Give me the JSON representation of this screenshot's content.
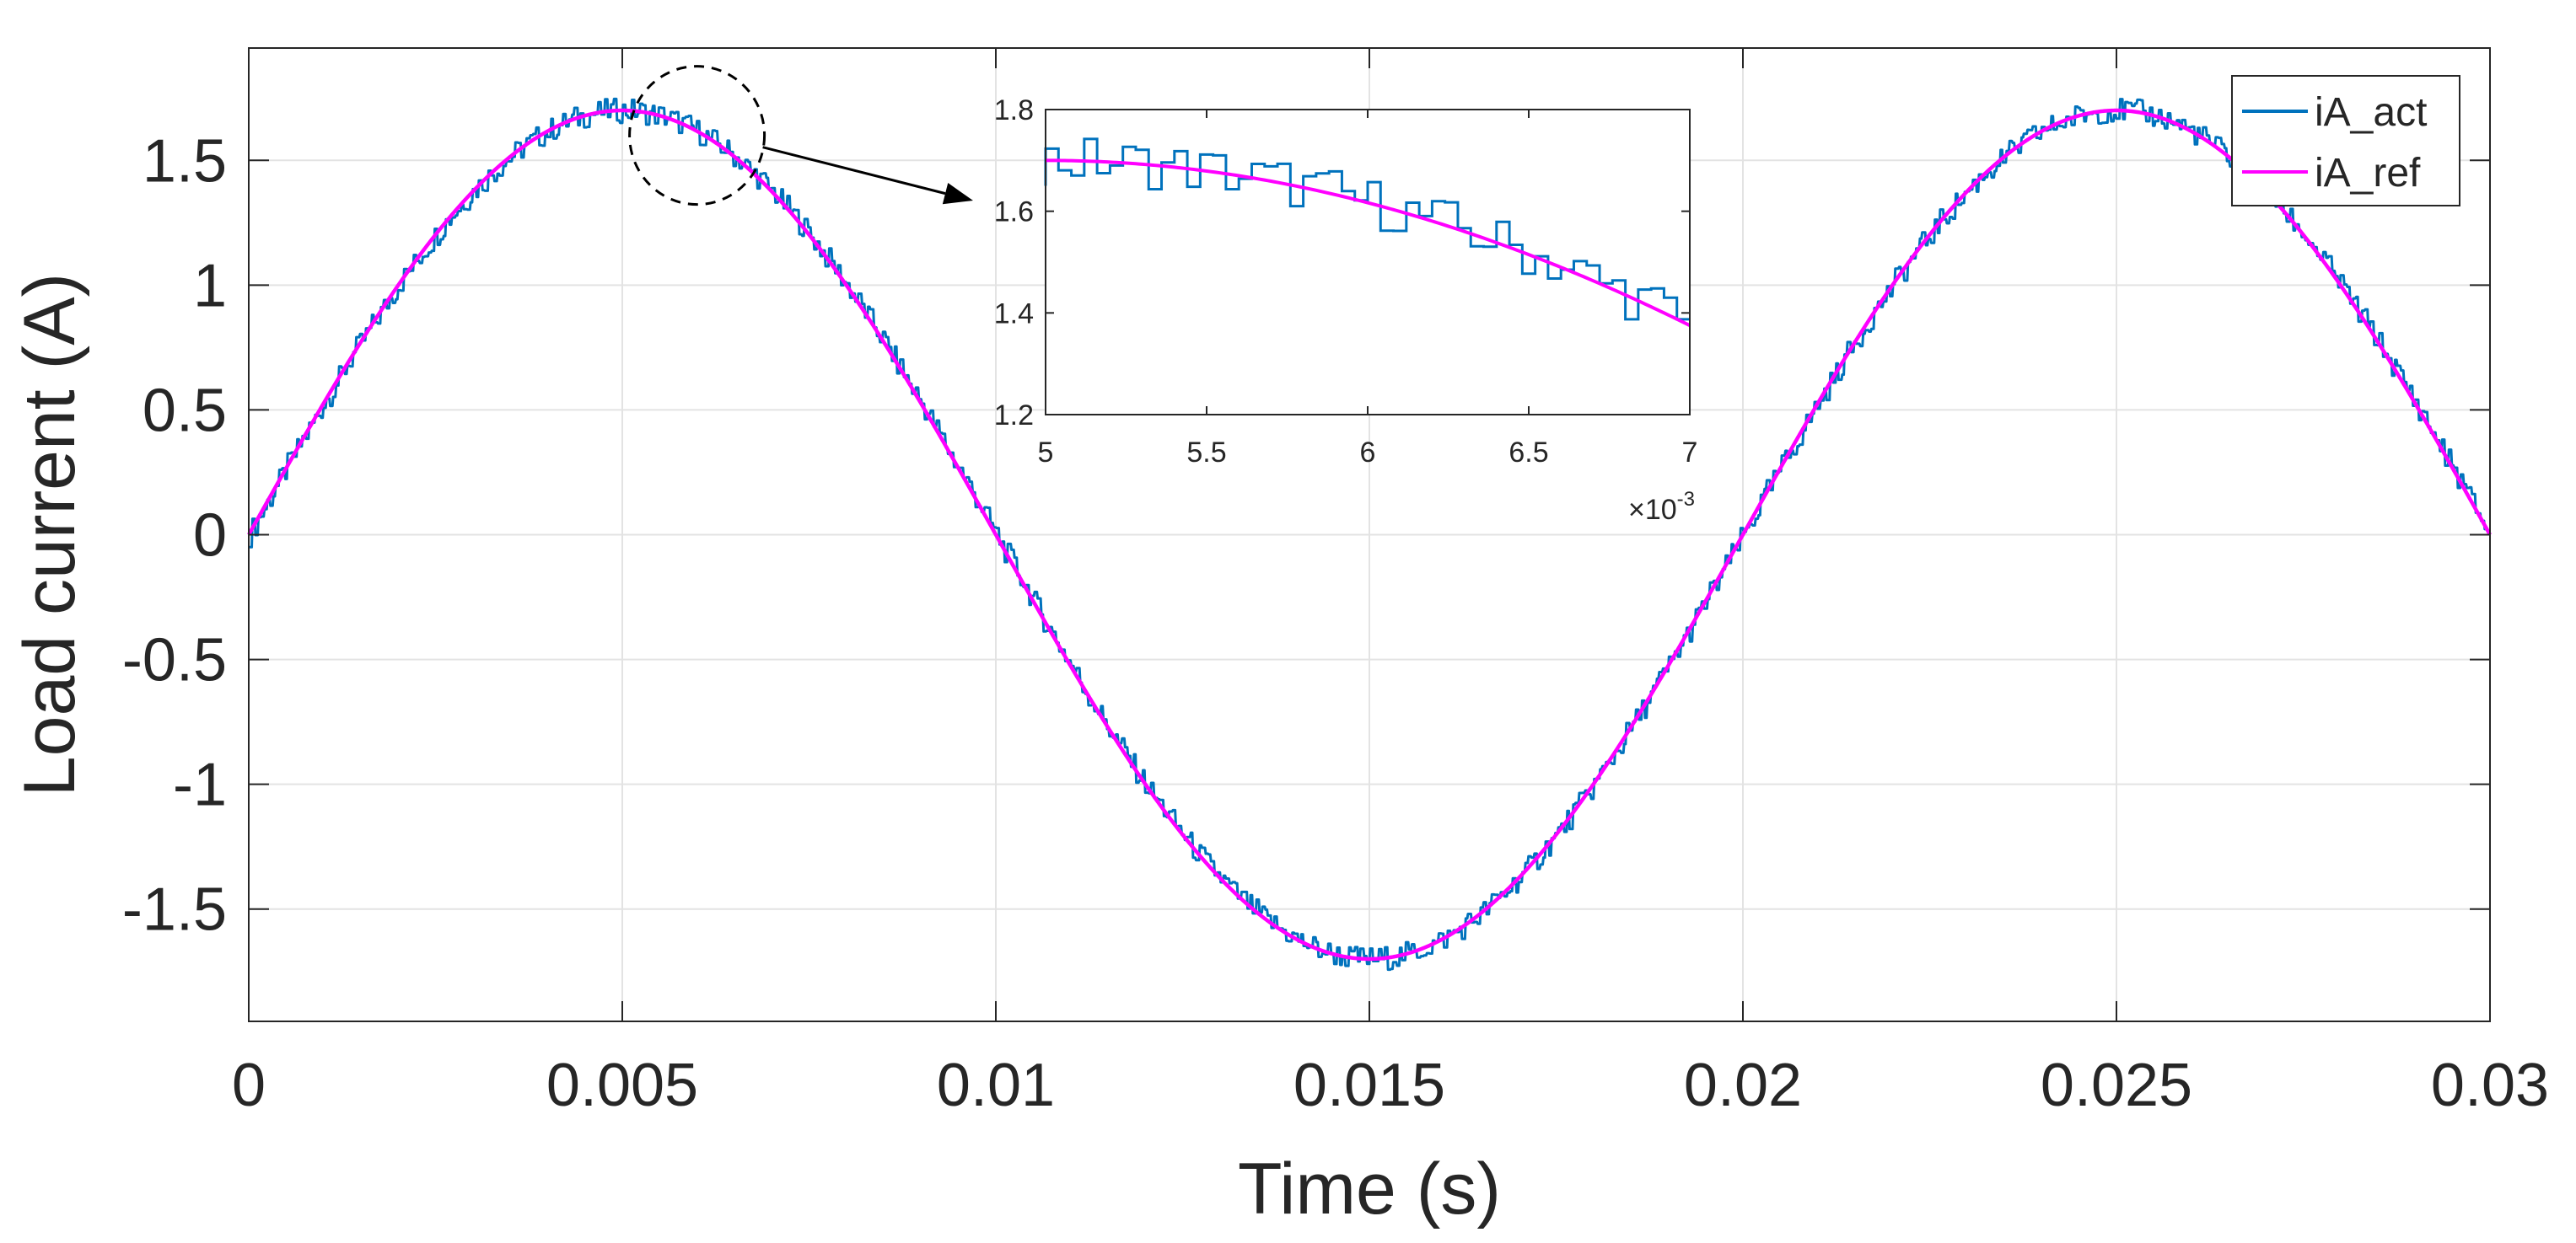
{
  "chart_data": [
    {
      "type": "line",
      "title": "",
      "xlabel": "Time (s)",
      "ylabel": "Load current (A)",
      "xlim": [
        0,
        0.03
      ],
      "ylim": [
        -1.95,
        1.95
      ],
      "xticks": [
        0,
        0.005,
        0.01,
        0.015,
        0.02,
        0.025,
        0.03
      ],
      "yticks": [
        -1.5,
        -1,
        -0.5,
        0,
        0.5,
        1,
        1.5
      ],
      "xtick_labels": [
        "0",
        "0.005",
        "0.01",
        "0.015",
        "0.02",
        "0.025",
        "0.03"
      ],
      "ytick_labels": [
        "-1.5",
        "-1",
        "-0.5",
        "0",
        "0.5",
        "1",
        "1.5"
      ],
      "grid": true,
      "legend": {
        "position": "top-right",
        "entries": [
          "iA_act",
          "iA_ref"
        ]
      },
      "series": [
        {
          "name": "iA_act",
          "color": "#0072BD",
          "kind": "noisy",
          "amplitude": 1.7,
          "frequency_hz": 50,
          "noise_amplitude": 0.05,
          "sample_period_s": 4e-05
        },
        {
          "name": "iA_ref",
          "color": "#FF00FF",
          "kind": "sine",
          "amplitude": 1.7,
          "frequency_hz": 50
        }
      ],
      "annotations": [
        {
          "type": "circle",
          "center_x": 0.006,
          "center_y": 1.6,
          "style": "dashed"
        },
        {
          "type": "arrow",
          "from": "circle",
          "to": "inset"
        }
      ]
    },
    {
      "type": "line",
      "role": "inset-zoom",
      "title": "",
      "xlabel": "",
      "ylabel": "",
      "x_exponent_label": "×10",
      "x_exponent": "-3",
      "x_scale": 0.001,
      "xlim": [
        5,
        7
      ],
      "ylim": [
        1.2,
        1.8
      ],
      "xticks": [
        5,
        5.5,
        6,
        6.5,
        7
      ],
      "yticks": [
        1.2,
        1.4,
        1.6,
        1.8
      ],
      "xtick_labels": [
        "5",
        "5.5",
        "6",
        "6.5",
        "7"
      ],
      "ytick_labels": [
        "1.2",
        "1.4",
        "1.6",
        "1.8"
      ],
      "grid": false,
      "series": [
        {
          "name": "iA_act",
          "color": "#0072BD",
          "kind": "noisy",
          "amplitude": 1.7,
          "frequency_hz": 50,
          "noise_amplitude": 0.05,
          "sample_period_s": 4e-05
        },
        {
          "name": "iA_ref",
          "color": "#FF00FF",
          "kind": "sine",
          "amplitude": 1.7,
          "frequency_hz": 50
        }
      ]
    }
  ]
}
